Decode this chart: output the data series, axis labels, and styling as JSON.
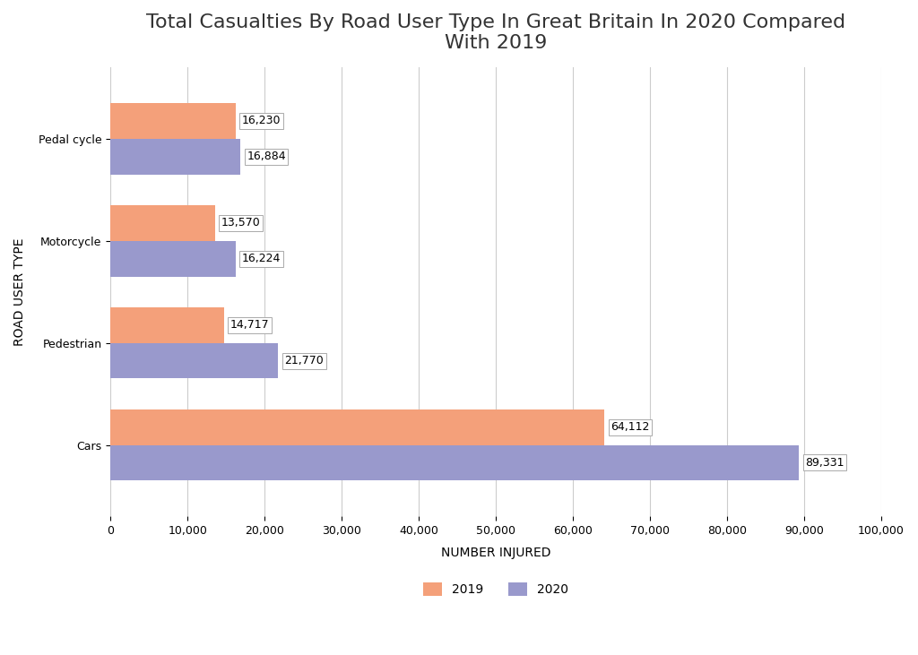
{
  "title": "Total Casualties By Road User Type In Great Britain In 2020 Compared\nWith 2019",
  "categories": [
    "Cars",
    "Pedestrian",
    "Motorcycle",
    "Pedal cycle"
  ],
  "values_2019": [
    64112,
    14717,
    13570,
    16230
  ],
  "values_2020": [
    89331,
    21770,
    16224,
    16884
  ],
  "color_2019": "#F4A07A",
  "color_2020": "#9999CC",
  "xlabel": "NUMBER INJURED",
  "ylabel": "ROAD USER TYPE",
  "xlim": [
    0,
    100000
  ],
  "xtick_step": 10000,
  "background_color": "#FFFFFF",
  "grid_color": "#CCCCCC",
  "label_2019": "2019",
  "label_2020": "2020",
  "title_fontsize": 16,
  "axis_label_fontsize": 10,
  "tick_fontsize": 9,
  "bar_height": 0.35,
  "annotation_fontsize": 9
}
